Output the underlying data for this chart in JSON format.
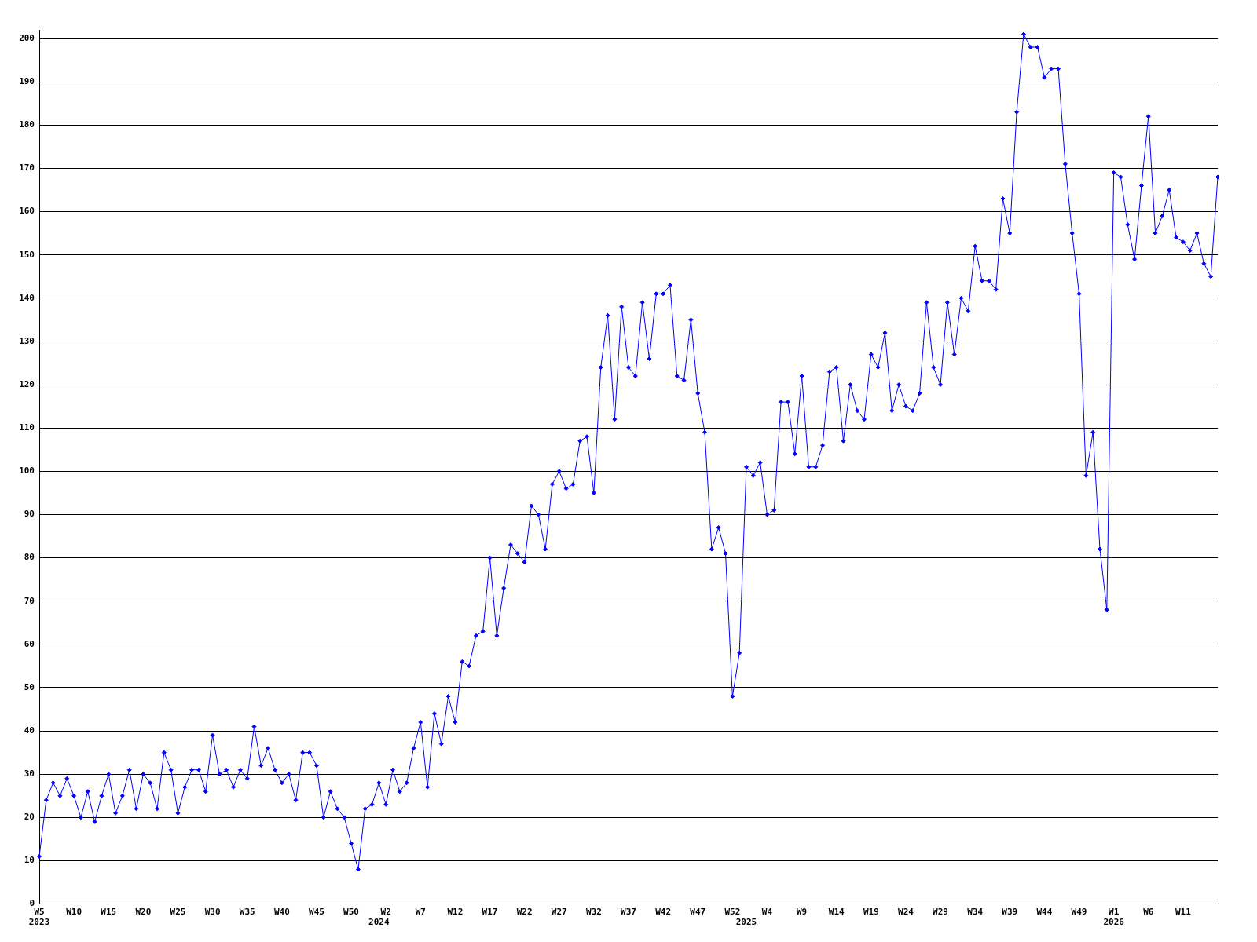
{
  "chart_data": {
    "type": "line",
    "categories": [
      "W5\n2023",
      null,
      null,
      null,
      null,
      "W10",
      null,
      null,
      null,
      null,
      "W15",
      null,
      null,
      null,
      null,
      "W20",
      null,
      null,
      null,
      null,
      "W25",
      null,
      null,
      null,
      null,
      "W30",
      null,
      null,
      null,
      null,
      "W35",
      null,
      null,
      null,
      null,
      "W40",
      null,
      null,
      null,
      null,
      "W45",
      null,
      null,
      null,
      null,
      "W50",
      null,
      null,
      null,
      "\n2024",
      "W2",
      null,
      null,
      null,
      null,
      "W7",
      null,
      null,
      null,
      null,
      "W12",
      null,
      null,
      null,
      null,
      "W17",
      null,
      null,
      null,
      null,
      "W22",
      null,
      null,
      null,
      null,
      "W27",
      null,
      null,
      null,
      null,
      "W32",
      null,
      null,
      null,
      null,
      "W37",
      null,
      null,
      null,
      null,
      "W42",
      null,
      null,
      null,
      null,
      "W47",
      null,
      null,
      null,
      null,
      "W52",
      null,
      "\n2025",
      null,
      null,
      "W4",
      null,
      null,
      null,
      null,
      "W9",
      null,
      null,
      null,
      null,
      "W14",
      null,
      null,
      null,
      null,
      "W19",
      null,
      null,
      null,
      null,
      "W24",
      null,
      null,
      null,
      null,
      "W29",
      null,
      null,
      null,
      null,
      "W34",
      null,
      null,
      null,
      null,
      "W39",
      null,
      null,
      null,
      null,
      "W44",
      null,
      null,
      null,
      null,
      "W49",
      null,
      null,
      null,
      null,
      "W1\n2026",
      null,
      null,
      null,
      null,
      "W6",
      null,
      null,
      null,
      null,
      "W11",
      null,
      null,
      null,
      null,
      null
    ],
    "values": [
      11,
      24,
      28,
      25,
      29,
      25,
      20,
      26,
      19,
      25,
      30,
      21,
      25,
      31,
      22,
      30,
      28,
      22,
      35,
      31,
      21,
      27,
      31,
      31,
      26,
      39,
      30,
      31,
      27,
      31,
      29,
      41,
      32,
      36,
      31,
      28,
      30,
      24,
      35,
      35,
      32,
      20,
      26,
      22,
      20,
      14,
      8,
      22,
      23,
      28,
      23,
      31,
      26,
      28,
      36,
      42,
      27,
      44,
      37,
      48,
      42,
      56,
      55,
      62,
      63,
      80,
      62,
      73,
      83,
      81,
      79,
      92,
      90,
      82,
      97,
      100,
      96,
      97,
      107,
      108,
      95,
      124,
      136,
      112,
      138,
      124,
      122,
      139,
      126,
      141,
      141,
      143,
      122,
      121,
      135,
      118,
      109,
      82,
      87,
      81,
      48,
      58,
      101,
      99,
      102,
      90,
      91,
      116,
      116,
      104,
      122,
      101,
      101,
      106,
      123,
      124,
      107,
      120,
      114,
      112,
      127,
      124,
      132,
      114,
      120,
      115,
      114,
      118,
      139,
      124,
      120,
      139,
      127,
      140,
      137,
      152,
      144,
      144,
      142,
      163,
      155,
      183,
      201,
      198,
      198,
      191,
      193,
      193,
      171,
      155,
      141,
      99,
      109,
      82,
      68,
      169,
      168,
      157,
      149,
      166,
      182,
      155,
      159,
      165,
      154,
      153,
      151,
      155,
      148,
      145,
      168
    ],
    "color": "#0000ff",
    "ylim": [
      0,
      202
    ],
    "yticks": [
      0,
      10,
      20,
      30,
      40,
      50,
      60,
      70,
      80,
      90,
      100,
      110,
      120,
      130,
      140,
      150,
      160,
      170,
      180,
      190,
      200
    ],
    "grid": "y",
    "marker": "diamond",
    "line_style": "solid"
  }
}
